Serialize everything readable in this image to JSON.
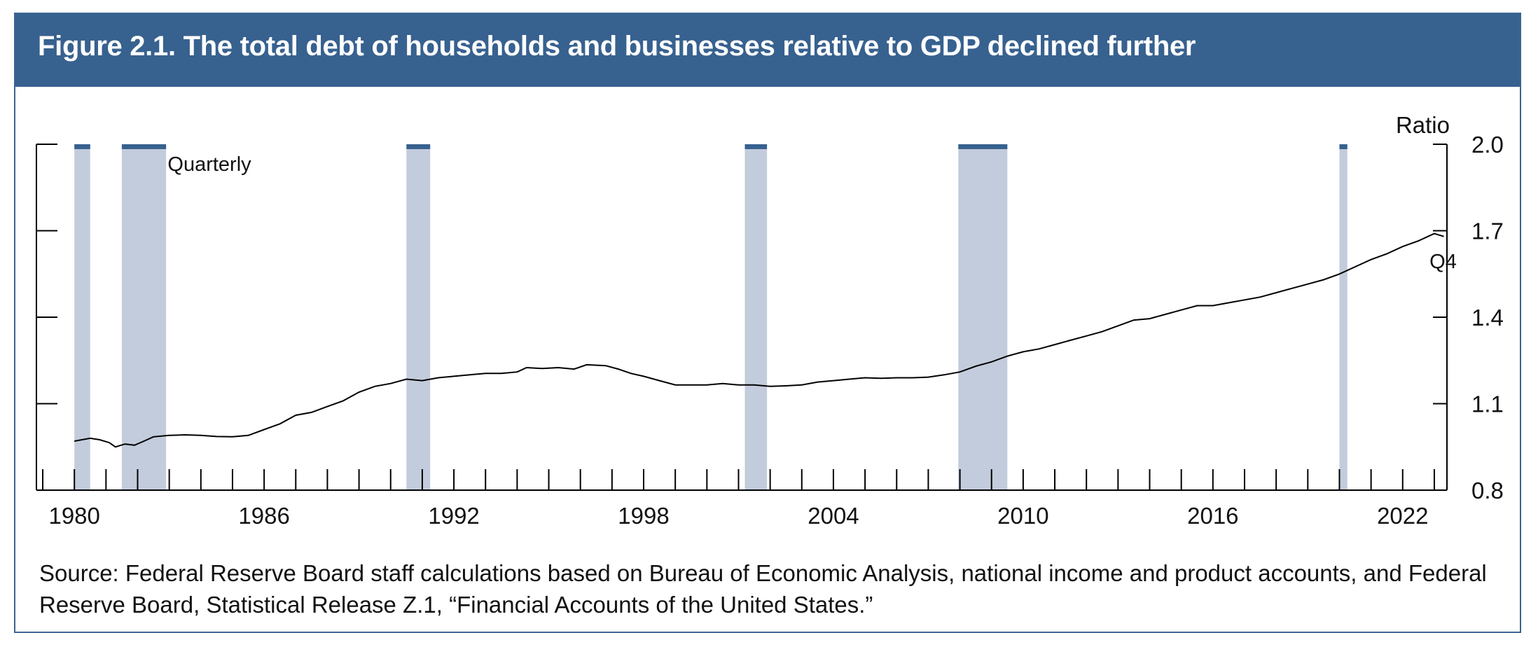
{
  "figure": {
    "title": "Figure 2.1. The total debt of households and businesses relative to GDP declined further",
    "source": "Source: Federal Reserve Board staff calculations based on Bureau of Economic Analysis, national income and product accounts, and Federal Reserve Board, Statistical Release Z.1, “Financial Accounts of the United States.”"
  },
  "chart_data": {
    "type": "line",
    "title": "",
    "xlabel": "",
    "ylabel": "Ratio",
    "frequency_note": "Quarterly",
    "end_label": "Q4",
    "xlim": [
      1978.8,
      2023.4
    ],
    "ylim": [
      0.8,
      2.0
    ],
    "y_axis_side": "right",
    "x_tick_labels": [
      "1980",
      "1986",
      "1992",
      "1998",
      "2004",
      "2010",
      "2016",
      "2022"
    ],
    "x_tick_label_values": [
      1980,
      1986,
      1992,
      1998,
      2004,
      2010,
      2016,
      2022
    ],
    "y_tick_labels": [
      "0.8",
      "1.1",
      "1.4",
      "1.7",
      "2.0"
    ],
    "y_tick_values": [
      0.8,
      1.1,
      1.4,
      1.7,
      2.0
    ],
    "colors": {
      "line": "#000000",
      "recession_shade": "#c3ccdc",
      "recession_cap": "#37618f",
      "header": "#37618f"
    },
    "recessions": [
      [
        1980.0,
        1980.5
      ],
      [
        1981.5,
        1982.9
      ],
      [
        1990.5,
        1991.25
      ],
      [
        2001.2,
        2001.9
      ],
      [
        2007.95,
        2009.5
      ],
      [
        2020.0,
        2020.25
      ]
    ],
    "series": [
      {
        "values": [
          [
            1980.0,
            0.97
          ],
          [
            1980.5,
            0.98
          ],
          [
            1980.8,
            0.975
          ],
          [
            1981.1,
            0.965
          ],
          [
            1981.3,
            0.95
          ],
          [
            1981.6,
            0.96
          ],
          [
            1981.9,
            0.956
          ],
          [
            1982.2,
            0.97
          ],
          [
            1982.5,
            0.985
          ],
          [
            1983.0,
            0.99
          ],
          [
            1983.5,
            0.992
          ],
          [
            1984.0,
            0.99
          ],
          [
            1984.5,
            0.986
          ],
          [
            1985.0,
            0.985
          ],
          [
            1985.5,
            0.99
          ],
          [
            1986.0,
            1.01
          ],
          [
            1986.5,
            1.03
          ],
          [
            1987.0,
            1.06
          ],
          [
            1987.5,
            1.07
          ],
          [
            1988.0,
            1.09
          ],
          [
            1988.5,
            1.11
          ],
          [
            1989.0,
            1.14
          ],
          [
            1989.5,
            1.16
          ],
          [
            1990.0,
            1.17
          ],
          [
            1990.5,
            1.185
          ],
          [
            1991.0,
            1.18
          ],
          [
            1991.5,
            1.19
          ],
          [
            1992.0,
            1.195
          ],
          [
            1992.5,
            1.2
          ],
          [
            1993.0,
            1.205
          ],
          [
            1993.5,
            1.205
          ],
          [
            1994.0,
            1.21
          ],
          [
            1994.3,
            1.225
          ],
          [
            1994.8,
            1.222
          ],
          [
            1995.3,
            1.225
          ],
          [
            1995.8,
            1.22
          ],
          [
            1996.2,
            1.235
          ],
          [
            1996.8,
            1.232
          ],
          [
            1997.2,
            1.22
          ],
          [
            1997.6,
            1.205
          ],
          [
            1998.0,
            1.195
          ],
          [
            1998.5,
            1.18
          ],
          [
            1999.0,
            1.165
          ],
          [
            1999.5,
            1.165
          ],
          [
            2000.0,
            1.165
          ],
          [
            2000.5,
            1.17
          ],
          [
            2001.0,
            1.165
          ],
          [
            2001.5,
            1.165
          ],
          [
            2002.0,
            1.16
          ],
          [
            2002.5,
            1.162
          ],
          [
            2003.0,
            1.165
          ],
          [
            2003.5,
            1.175
          ],
          [
            2004.0,
            1.18
          ],
          [
            2004.5,
            1.185
          ],
          [
            2005.0,
            1.19
          ],
          [
            2005.5,
            1.188
          ],
          [
            2006.0,
            1.19
          ],
          [
            2006.5,
            1.19
          ],
          [
            2007.0,
            1.192
          ],
          [
            2007.5,
            1.2
          ],
          [
            2008.0,
            1.21
          ],
          [
            2008.5,
            1.23
          ],
          [
            2009.0,
            1.245
          ],
          [
            2009.5,
            1.265
          ],
          [
            2010.0,
            1.28
          ],
          [
            2010.5,
            1.29
          ],
          [
            2011.0,
            1.305
          ],
          [
            2011.5,
            1.32
          ],
          [
            2012.0,
            1.335
          ],
          [
            2012.5,
            1.35
          ],
          [
            2013.0,
            1.37
          ],
          [
            2013.5,
            1.39
          ],
          [
            2014.0,
            1.395
          ],
          [
            2014.5,
            1.41
          ],
          [
            2015.0,
            1.425
          ],
          [
            2015.5,
            1.44
          ],
          [
            2016.0,
            1.44
          ],
          [
            2016.5,
            1.45
          ],
          [
            2017.0,
            1.46
          ],
          [
            2017.5,
            1.47
          ],
          [
            2018.0,
            1.485
          ],
          [
            2018.5,
            1.5
          ],
          [
            2019.0,
            1.515
          ],
          [
            2019.5,
            1.53
          ],
          [
            2020.0,
            1.55
          ],
          [
            2020.5,
            1.575
          ],
          [
            2021.0,
            1.6
          ],
          [
            2021.5,
            1.62
          ],
          [
            2022.0,
            1.645
          ],
          [
            2022.5,
            1.665
          ],
          [
            2023.0,
            1.69
          ],
          [
            2023.3,
            1.68
          ]
        ]
      }
    ]
  }
}
